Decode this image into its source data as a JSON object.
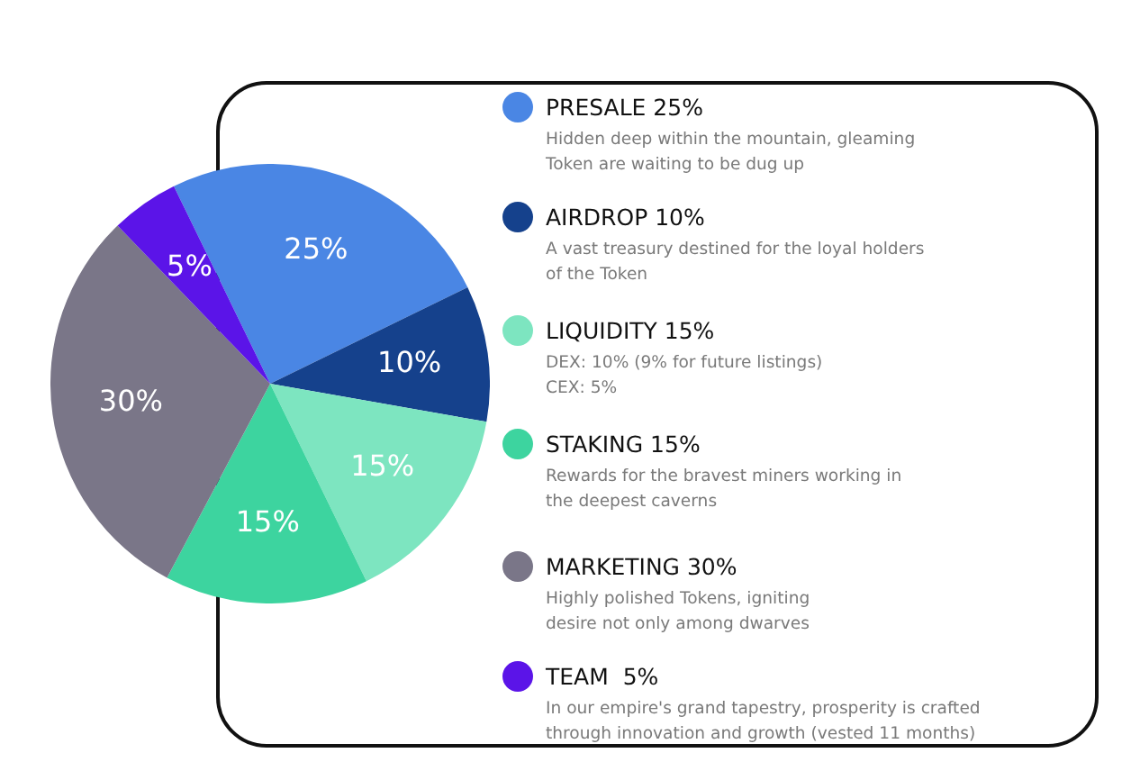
{
  "chart_data": {
    "type": "pie",
    "categories": [
      "PRESALE 25%",
      "AIRDROP 10%",
      "LIQUIDITY 15%",
      "STAKING 15%",
      "MARKETING 30%",
      "TEAM  5%"
    ],
    "values": [
      25,
      10,
      15,
      15,
      30,
      5
    ],
    "value_labels": [
      "25%",
      "10%",
      "15%",
      "15%",
      "30%",
      "5%"
    ],
    "colors": [
      "#4a86e4",
      "#15418c",
      "#7de5c0",
      "#3dd49f",
      "#7a7688",
      "#5b14e8"
    ],
    "legend": "right",
    "annotations": [
      "Hidden deep within the mountain, gleaming\nToken are waiting to be dug up",
      "A vast treasury destined for the loyal holders\nof the Token",
      "DEX: 10% (9% for future listings)\nCEX: 5%",
      "Rewards for the bravest miners working in\nthe deepest caverns",
      "Highly polished Tokens, igniting\ndesire not only among dwarves",
      "In our empire's grand tapestry, prosperity is crafted\nthrough innovation and growth (vested 11 months)"
    ]
  }
}
